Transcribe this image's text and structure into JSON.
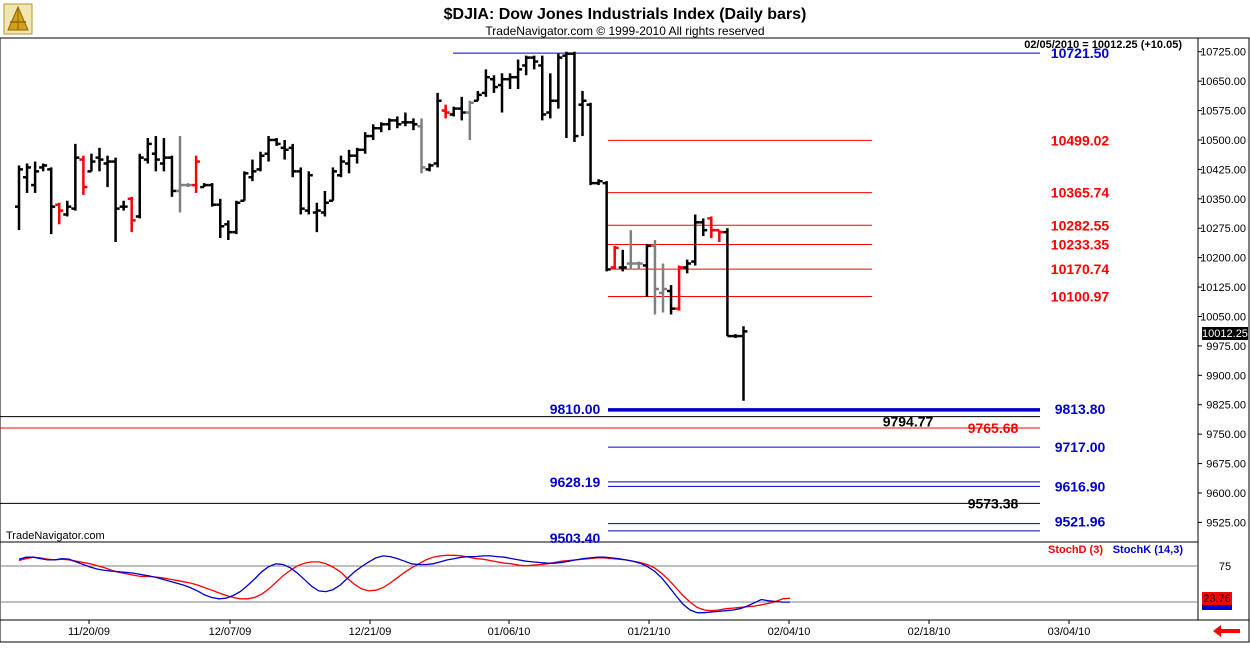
{
  "header": {
    "title": "$DJIA:  Dow Jones Industrials Index  (Daily bars)",
    "subtitle": "TradeNavigator.com © 1999-2010 All rights reserved",
    "quote": "02/05/2010 = 10012.25 (+10.05)",
    "watermark": "TradeNavigator.com",
    "last_price_tag": "10012.25"
  },
  "colors": {
    "up_bar": "#000000",
    "down_bar": "#ff0000",
    "neutral_bar": "#808080",
    "blue_level": "#0000cc",
    "red_level": "#ff0000",
    "black_level": "#000000",
    "stochD": "#ff0000",
    "stochK": "#0000cc"
  },
  "chart_data": [
    {
      "type": "bar",
      "subtype": "ohlc",
      "ylim": [
        9475,
        10760
      ],
      "y_ticks": [
        "10725.00",
        "10650.00",
        "10575.00",
        "10500.00",
        "10425.00",
        "10350.00",
        "10275.00",
        "10200.00",
        "10125.00",
        "10050.00",
        "9975.00",
        "9900.00",
        "9825.00",
        "9750.00",
        "9675.00",
        "9600.00",
        "9525.00"
      ],
      "x_ticks": [
        "11/20/09",
        "12/07/09",
        "12/21/09",
        "01/06/10",
        "01/21/10",
        "02/04/10",
        "02/18/10",
        "03/04/10"
      ],
      "bars": [
        {
          "o": 10330,
          "h": 10435,
          "l": 10270,
          "c": 10425,
          "col": "up"
        },
        {
          "o": 10405,
          "h": 10440,
          "l": 10365,
          "c": 10430,
          "col": "up"
        },
        {
          "o": 10385,
          "h": 10445,
          "l": 10365,
          "c": 10420,
          "col": "up"
        },
        {
          "o": 10430,
          "h": 10440,
          "l": 10420,
          "c": 10435,
          "col": "up"
        },
        {
          "o": 10425,
          "h": 10430,
          "l": 10260,
          "c": 10330,
          "col": "up"
        },
        {
          "o": 10335,
          "h": 10340,
          "l": 10285,
          "c": 10320,
          "col": "down"
        },
        {
          "o": 10310,
          "h": 10345,
          "l": 10305,
          "c": 10330,
          "col": "up"
        },
        {
          "o": 10325,
          "h": 10490,
          "l": 10320,
          "c": 10455,
          "col": "up"
        },
        {
          "o": 10450,
          "h": 10460,
          "l": 10360,
          "c": 10380,
          "col": "down"
        },
        {
          "o": 10420,
          "h": 10465,
          "l": 10420,
          "c": 10445,
          "col": "up"
        },
        {
          "o": 10455,
          "h": 10480,
          "l": 10420,
          "c": 10450,
          "col": "up"
        },
        {
          "o": 10440,
          "h": 10460,
          "l": 10380,
          "c": 10445,
          "col": "up"
        },
        {
          "o": 10445,
          "h": 10455,
          "l": 10240,
          "c": 10325,
          "col": "up"
        },
        {
          "o": 10330,
          "h": 10345,
          "l": 10320,
          "c": 10330,
          "col": "up"
        },
        {
          "o": 10350,
          "h": 10355,
          "l": 10265,
          "c": 10295,
          "col": "down"
        },
        {
          "o": 10305,
          "h": 10465,
          "l": 10300,
          "c": 10455,
          "col": "up"
        },
        {
          "o": 10450,
          "h": 10505,
          "l": 10440,
          "c": 10490,
          "col": "up"
        },
        {
          "o": 10465,
          "h": 10510,
          "l": 10420,
          "c": 10450,
          "col": "up"
        },
        {
          "o": 10440,
          "h": 10505,
          "l": 10420,
          "c": 10455,
          "col": "up"
        },
        {
          "o": 10455,
          "h": 10460,
          "l": 10355,
          "c": 10370,
          "col": "up"
        },
        {
          "o": 10370,
          "h": 10510,
          "l": 10315,
          "c": 10385,
          "col": "neutral"
        },
        {
          "o": 10385,
          "h": 10390,
          "l": 10380,
          "c": 10385,
          "col": "neutral"
        },
        {
          "o": 10385,
          "h": 10460,
          "l": 10365,
          "c": 10445,
          "col": "down"
        },
        {
          "o": 10380,
          "h": 10390,
          "l": 10380,
          "c": 10385,
          "col": "up"
        },
        {
          "o": 10385,
          "h": 10390,
          "l": 10330,
          "c": 10335,
          "col": "up"
        },
        {
          "o": 10335,
          "h": 10350,
          "l": 10250,
          "c": 10280,
          "col": "up"
        },
        {
          "o": 10285,
          "h": 10295,
          "l": 10245,
          "c": 10265,
          "col": "up"
        },
        {
          "o": 10265,
          "h": 10345,
          "l": 10260,
          "c": 10340,
          "col": "up"
        },
        {
          "o": 10345,
          "h": 10420,
          "l": 10345,
          "c": 10415,
          "col": "up"
        },
        {
          "o": 10405,
          "h": 10450,
          "l": 10395,
          "c": 10420,
          "col": "up"
        },
        {
          "o": 10425,
          "h": 10470,
          "l": 10420,
          "c": 10460,
          "col": "up"
        },
        {
          "o": 10465,
          "h": 10510,
          "l": 10445,
          "c": 10500,
          "col": "up"
        },
        {
          "o": 10500,
          "h": 10505,
          "l": 10485,
          "c": 10490,
          "col": "up"
        },
        {
          "o": 10480,
          "h": 10500,
          "l": 10450,
          "c": 10475,
          "col": "up"
        },
        {
          "o": 10480,
          "h": 10490,
          "l": 10405,
          "c": 10420,
          "col": "up"
        },
        {
          "o": 10420,
          "h": 10430,
          "l": 10310,
          "c": 10325,
          "col": "up"
        },
        {
          "o": 10320,
          "h": 10420,
          "l": 10310,
          "c": 10410,
          "col": "up"
        },
        {
          "o": 10315,
          "h": 10340,
          "l": 10265,
          "c": 10320,
          "col": "up"
        },
        {
          "o": 10315,
          "h": 10370,
          "l": 10305,
          "c": 10340,
          "col": "up"
        },
        {
          "o": 10345,
          "h": 10430,
          "l": 10345,
          "c": 10420,
          "col": "up"
        },
        {
          "o": 10410,
          "h": 10460,
          "l": 10405,
          "c": 10445,
          "col": "up"
        },
        {
          "o": 10440,
          "h": 10475,
          "l": 10415,
          "c": 10460,
          "col": "up"
        },
        {
          "o": 10460,
          "h": 10480,
          "l": 10440,
          "c": 10475,
          "col": "up"
        },
        {
          "o": 10475,
          "h": 10520,
          "l": 10465,
          "c": 10510,
          "col": "up"
        },
        {
          "o": 10510,
          "h": 10540,
          "l": 10500,
          "c": 10530,
          "col": "up"
        },
        {
          "o": 10530,
          "h": 10545,
          "l": 10520,
          "c": 10540,
          "col": "up"
        },
        {
          "o": 10540,
          "h": 10555,
          "l": 10525,
          "c": 10550,
          "col": "up"
        },
        {
          "o": 10550,
          "h": 10560,
          "l": 10530,
          "c": 10540,
          "col": "up"
        },
        {
          "o": 10545,
          "h": 10570,
          "l": 10535,
          "c": 10545,
          "col": "up"
        },
        {
          "o": 10545,
          "h": 10555,
          "l": 10525,
          "c": 10540,
          "col": "up"
        },
        {
          "o": 10535,
          "h": 10555,
          "l": 10415,
          "c": 10430,
          "col": "neutral"
        },
        {
          "o": 10425,
          "h": 10440,
          "l": 10420,
          "c": 10435,
          "col": "up"
        },
        {
          "o": 10440,
          "h": 10620,
          "l": 10430,
          "c": 10600,
          "col": "up"
        },
        {
          "o": 10575,
          "h": 10590,
          "l": 10555,
          "c": 10570,
          "col": "down"
        },
        {
          "o": 10565,
          "h": 10585,
          "l": 10560,
          "c": 10580,
          "col": "up"
        },
        {
          "o": 10580,
          "h": 10610,
          "l": 10550,
          "c": 10570,
          "col": "up"
        },
        {
          "o": 10570,
          "h": 10600,
          "l": 10500,
          "c": 10595,
          "col": "neutral"
        },
        {
          "o": 10600,
          "h": 10625,
          "l": 10600,
          "c": 10615,
          "col": "up"
        },
        {
          "o": 10620,
          "h": 10680,
          "l": 10610,
          "c": 10660,
          "col": "up"
        },
        {
          "o": 10655,
          "h": 10665,
          "l": 10620,
          "c": 10635,
          "col": "up"
        },
        {
          "o": 10640,
          "h": 10670,
          "l": 10570,
          "c": 10655,
          "col": "up"
        },
        {
          "o": 10655,
          "h": 10670,
          "l": 10630,
          "c": 10660,
          "col": "up"
        },
        {
          "o": 10660,
          "h": 10705,
          "l": 10630,
          "c": 10680,
          "col": "up"
        },
        {
          "o": 10690,
          "h": 10715,
          "l": 10665,
          "c": 10710,
          "col": "up"
        },
        {
          "o": 10710,
          "h": 10715,
          "l": 10680,
          "c": 10700,
          "col": "up"
        },
        {
          "o": 10690,
          "h": 10715,
          "l": 10550,
          "c": 10565,
          "col": "up"
        },
        {
          "o": 10570,
          "h": 10670,
          "l": 10555,
          "c": 10600,
          "col": "up"
        },
        {
          "o": 10600,
          "h": 10720,
          "l": 10580,
          "c": 10710,
          "col": "up"
        },
        {
          "o": 10715,
          "h": 10725,
          "l": 10505,
          "c": 10720,
          "col": "up"
        },
        {
          "o": 10720,
          "h": 10725,
          "l": 10495,
          "c": 10510,
          "col": "up"
        },
        {
          "o": 10590,
          "h": 10625,
          "l": 10510,
          "c": 10600,
          "col": "up"
        },
        {
          "o": 10590,
          "h": 10595,
          "l": 10385,
          "c": 10390,
          "col": "up"
        },
        {
          "o": 10390,
          "h": 10400,
          "l": 10385,
          "c": 10395,
          "col": "up"
        },
        {
          "o": 10390,
          "h": 10395,
          "l": 10165,
          "c": 10170,
          "col": "up"
        },
        {
          "o": 10175,
          "h": 10230,
          "l": 10170,
          "c": 10225,
          "col": "down"
        },
        {
          "o": 10175,
          "h": 10220,
          "l": 10165,
          "c": 10175,
          "col": "up"
        },
        {
          "o": 10185,
          "h": 10270,
          "l": 10170,
          "c": 10185,
          "col": "neutral"
        },
        {
          "o": 10185,
          "h": 10190,
          "l": 10170,
          "c": 10185,
          "col": "neutral"
        },
        {
          "o": 10180,
          "h": 10235,
          "l": 10100,
          "c": 10230,
          "col": "up"
        },
        {
          "o": 10230,
          "h": 10245,
          "l": 10055,
          "c": 10120,
          "col": "neutral"
        },
        {
          "o": 10110,
          "h": 10185,
          "l": 10060,
          "c": 10120,
          "col": "neutral"
        },
        {
          "o": 10115,
          "h": 10130,
          "l": 10055,
          "c": 10070,
          "col": "up"
        },
        {
          "o": 10070,
          "h": 10180,
          "l": 10065,
          "c": 10175,
          "col": "down"
        },
        {
          "o": 10175,
          "h": 10195,
          "l": 10160,
          "c": 10185,
          "col": "up"
        },
        {
          "o": 10190,
          "h": 10310,
          "l": 10180,
          "c": 10290,
          "col": "up"
        },
        {
          "o": 10290,
          "h": 10300,
          "l": 10255,
          "c": 10270,
          "col": "up"
        },
        {
          "o": 10300,
          "h": 10305,
          "l": 10250,
          "c": 10270,
          "col": "down"
        },
        {
          "o": 10270,
          "h": 10270,
          "l": 10240,
          "c": 10265,
          "col": "down"
        },
        {
          "o": 10265,
          "h": 10275,
          "l": 10000,
          "c": 10000,
          "col": "up"
        },
        {
          "o": 10000,
          "h": 10005,
          "l": 9995,
          "c": 10000,
          "col": "up"
        },
        {
          "o": 10000,
          "h": 10025,
          "l": 9835,
          "c": 10012,
          "col": "up"
        }
      ],
      "levels": [
        {
          "label": "10721.50",
          "value": 10721.5,
          "color": "blue",
          "side": "right"
        },
        {
          "label": "10499.02",
          "value": 10499.02,
          "color": "red",
          "side": "right"
        },
        {
          "label": "10365.74",
          "value": 10365.74,
          "color": "red",
          "side": "right"
        },
        {
          "label": "10282.55",
          "value": 10282.55,
          "color": "red",
          "side": "right"
        },
        {
          "label": "10233.35",
          "value": 10233.35,
          "color": "red",
          "side": "right"
        },
        {
          "label": "10170.74",
          "value": 10170.74,
          "color": "red",
          "side": "right"
        },
        {
          "label": "10100.97",
          "value": 10100.97,
          "color": "red",
          "side": "right"
        },
        {
          "label": "9810.00",
          "value": 9810.0,
          "color": "blue",
          "side": "left"
        },
        {
          "label": "9813.80",
          "value": 9813.8,
          "color": "blue",
          "side": "right"
        },
        {
          "label": "9794.77",
          "value": 9794.77,
          "color": "black",
          "side": "mid"
        },
        {
          "label": "9765.68",
          "value": 9765.68,
          "color": "red",
          "side": "mid"
        },
        {
          "label": "9717.00",
          "value": 9717.0,
          "color": "blue",
          "side": "right"
        },
        {
          "label": "9628.19",
          "value": 9628.19,
          "color": "blue",
          "side": "left"
        },
        {
          "label": "9616.90",
          "value": 9616.9,
          "color": "blue",
          "side": "right"
        },
        {
          "label": "9573.38",
          "value": 9573.38,
          "color": "black",
          "side": "mid"
        },
        {
          "label": "9503.40",
          "value": 9503.4,
          "color": "blue",
          "side": "left"
        },
        {
          "label": "9521.96",
          "value": 9521.96,
          "color": "blue",
          "side": "right"
        }
      ]
    },
    {
      "type": "line",
      "ylim": [
        0,
        100
      ],
      "y_ticks": [
        "75"
      ],
      "last_value_label": "23.76",
      "series": [
        {
          "name": "StochD (3)",
          "color": "red",
          "values": [
            81,
            84,
            86,
            85,
            83,
            82,
            83,
            82,
            80,
            78,
            76,
            73,
            70,
            66,
            63,
            61,
            59,
            57,
            57,
            56,
            55,
            53,
            51,
            49,
            47,
            44,
            40,
            36,
            32,
            28,
            25,
            23,
            23,
            25,
            30,
            38,
            48,
            58,
            66,
            73,
            77,
            79,
            79,
            76,
            71,
            64,
            54,
            45,
            38,
            35,
            36,
            40,
            47,
            55,
            63,
            70,
            76,
            82,
            86,
            88,
            89,
            89,
            88,
            86,
            84,
            83,
            81,
            79,
            77,
            76,
            74,
            73,
            74,
            75,
            76,
            78,
            80,
            81,
            82,
            83,
            84,
            85,
            85,
            84,
            83,
            82,
            80,
            78,
            75,
            70,
            62,
            52,
            40,
            28,
            18,
            10,
            6,
            5,
            6,
            8,
            9,
            10,
            11,
            12,
            14,
            16,
            19,
            23,
            24
          ]
        },
        {
          "name": "StochK (14,3)",
          "color": "blue",
          "values": [
            83,
            86,
            86,
            84,
            82,
            82,
            84,
            83,
            79,
            75,
            71,
            68,
            66,
            65,
            64,
            63,
            62,
            60,
            58,
            56,
            53,
            50,
            47,
            44,
            40,
            35,
            29,
            25,
            23,
            24,
            28,
            34,
            43,
            53,
            64,
            72,
            76,
            75,
            70,
            62,
            52,
            42,
            35,
            34,
            37,
            44,
            54,
            64,
            72,
            79,
            85,
            88,
            87,
            84,
            80,
            76,
            75,
            75,
            76,
            79,
            82,
            84,
            86,
            87,
            87,
            88,
            88,
            87,
            86,
            84,
            82,
            80,
            79,
            78,
            77,
            77,
            78,
            80,
            82,
            84,
            85,
            86,
            86,
            85,
            84,
            82,
            80,
            77,
            72,
            65,
            55,
            42,
            28,
            15,
            6,
            2,
            2,
            3,
            4,
            5,
            6,
            8,
            12,
            17,
            22,
            20,
            19,
            18,
            18
          ]
        }
      ]
    }
  ]
}
